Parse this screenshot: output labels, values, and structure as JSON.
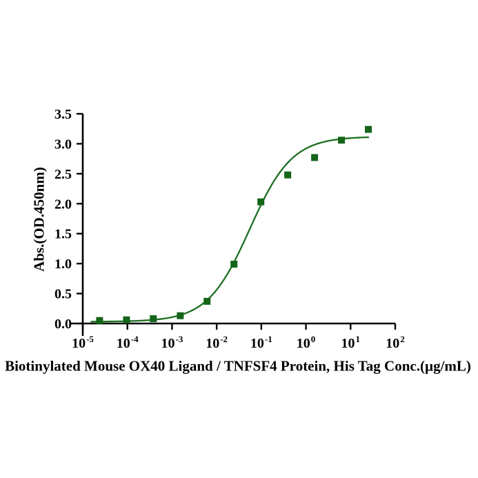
{
  "chart_data": {
    "type": "scatter",
    "title": "",
    "xlabel": "Biotinylated Mouse OX40 Ligand / TNFSF4 Protein, His Tag Conc.(µg/mL)",
    "ylabel": "Abs.(OD.450nm)",
    "x_scale": "log10",
    "xlim_exponents": [
      -5,
      2
    ],
    "ylim": [
      0,
      3.5
    ],
    "x_tick_exponents": [
      -5,
      -4,
      -3,
      -2,
      -1,
      0,
      1,
      2
    ],
    "y_ticks": [
      0,
      0.5,
      1,
      1.5,
      2,
      2.5,
      3,
      3.5
    ],
    "y_tick_labels": [
      "0.0",
      "0.5",
      "1.0",
      "1.5",
      "2.0",
      "2.5",
      "3.0",
      "3.5"
    ],
    "grid": false,
    "legend": false,
    "colors": {
      "series": "#156419",
      "curve": "#1b6e20",
      "axis": "#000000",
      "background": "#ffffff"
    },
    "series": [
      {
        "name": "Biotinylated Mouse OX40 Ligand / TNFSF4 Protein, His Tag",
        "marker": "square",
        "color": "#156419",
        "points": [
          {
            "x": 2.38e-05,
            "y": 0.05
          },
          {
            "x": 9.54e-05,
            "y": 0.06
          },
          {
            "x": 0.000381,
            "y": 0.08
          },
          {
            "x": 0.00153,
            "y": 0.13
          },
          {
            "x": 0.0061,
            "y": 0.37
          },
          {
            "x": 0.0244,
            "y": 0.99
          },
          {
            "x": 0.0977,
            "y": 2.03
          },
          {
            "x": 0.391,
            "y": 2.48
          },
          {
            "x": 1.563,
            "y": 2.77
          },
          {
            "x": 6.25,
            "y": 3.06
          },
          {
            "x": 25,
            "y": 3.24
          }
        ]
      }
    ],
    "fit_curve": {
      "model": "4PL",
      "bottom": 0.03,
      "top": 3.12,
      "ec50": 0.055,
      "hill": 0.92,
      "x_range": [
        1.55e-05,
        25
      ]
    }
  }
}
